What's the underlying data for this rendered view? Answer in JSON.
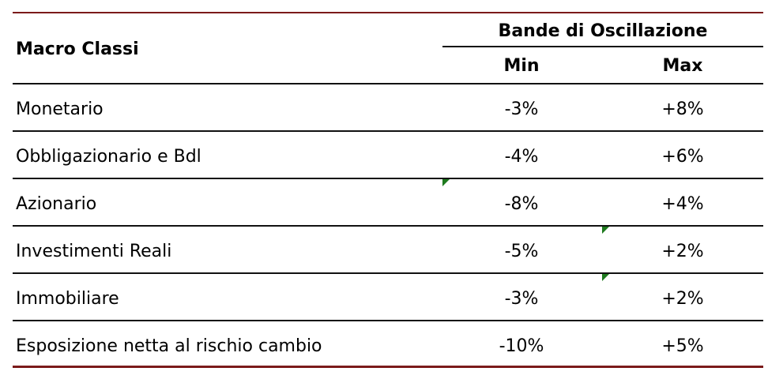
{
  "table": {
    "header": {
      "category_label": "Macro Classi",
      "group_label": "Bande di Oscillazione",
      "min_label": "Min",
      "max_label": "Max"
    },
    "rows": [
      {
        "name": "Monetario",
        "min": "-3%",
        "max": "+8%"
      },
      {
        "name": "Obbligazionario e Bdl",
        "min": "-4%",
        "max": "+6%"
      },
      {
        "name": "Azionario",
        "min": "-8%",
        "max": "+4%"
      },
      {
        "name": "Investimenti Reali",
        "min": "-5%",
        "max": "+2%"
      },
      {
        "name": "Immobiliare",
        "min": "-3%",
        "max": "+2%"
      },
      {
        "name": "Esposizione netta al rischio cambio",
        "min": "-10%",
        "max": "+5%"
      }
    ]
  },
  "colors": {
    "accent_rule": "#7b1a1a",
    "row_rule": "#111111",
    "comment_marker": "#1e7a1e"
  }
}
